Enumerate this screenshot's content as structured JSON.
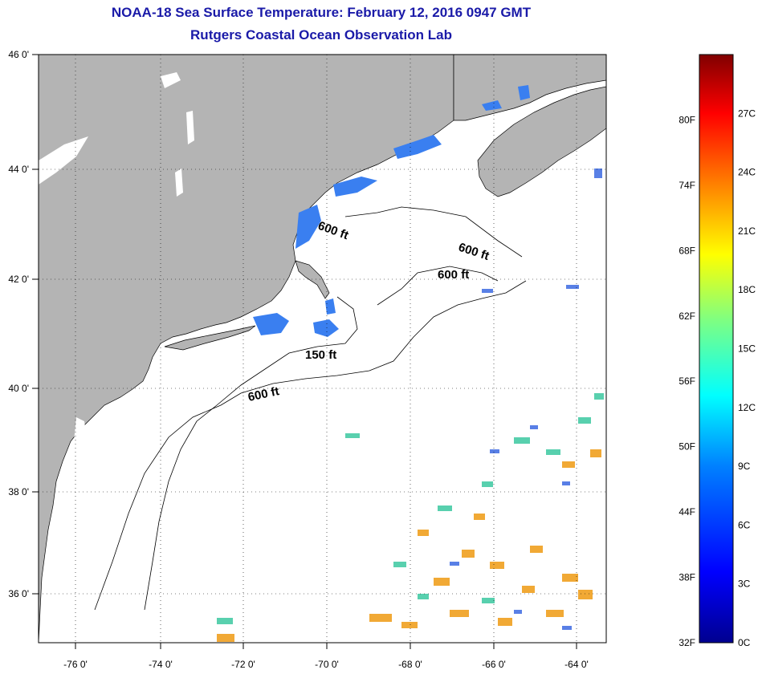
{
  "title": {
    "line1": "NOAA-18 Sea Surface Temperature:  February 12, 2016 0947 GMT",
    "line2": "Rutgers Coastal Ocean Observation Lab"
  },
  "map": {
    "lon_range": [
      -77,
      -62.5
    ],
    "lat_range": [
      35,
      46
    ],
    "lon_ticks": [
      "-76 0'",
      "-74 0'",
      "-72 0'",
      "-70 0'",
      "-68 0'",
      "-66 0'",
      "-64 0'"
    ],
    "lat_ticks": [
      "46 0'",
      "44 0'",
      "42 0'",
      "40 0'",
      "38 0'",
      "36 0'"
    ],
    "land_color": "#b4b4b4",
    "ocean_color": "#ffffff",
    "grid": "dotted",
    "contour_labels": [
      "600 ft",
      "600 ft",
      "600 ft",
      "150 ft",
      "600 ft"
    ]
  },
  "colorbar": {
    "fahrenheit_labels": [
      "80F",
      "74F",
      "68F",
      "62F",
      "56F",
      "50F",
      "44F",
      "38F",
      "32F"
    ],
    "celsius_labels": [
      "27C",
      "24C",
      "21C",
      "18C",
      "15C",
      "12C",
      "9C",
      "6C",
      "3C",
      "0C"
    ],
    "colors": [
      "#00008f",
      "#0000ff",
      "#0080ff",
      "#00ffff",
      "#80ff80",
      "#ffff00",
      "#ff8000",
      "#ff0000",
      "#800000"
    ]
  }
}
